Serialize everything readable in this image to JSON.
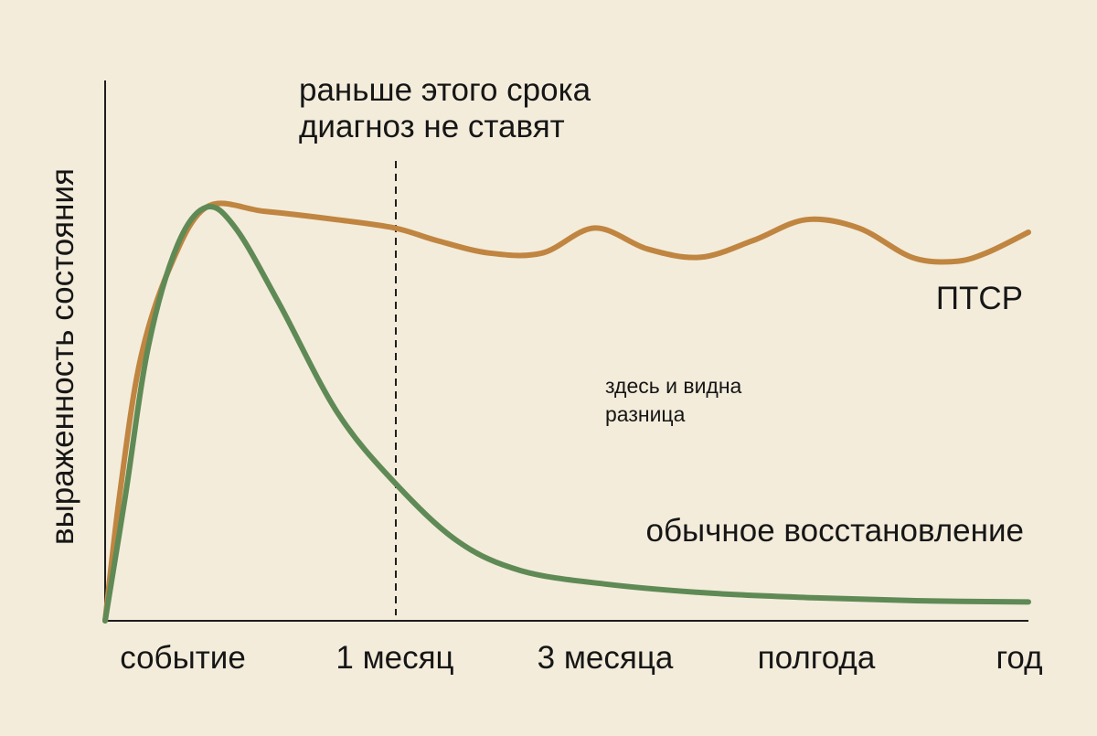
{
  "background_color": "#f3ecdb",
  "chart_data": {
    "type": "line",
    "title": "",
    "xlabel": "",
    "ylabel": "выраженность состояния",
    "grid": false,
    "x_ticks": [
      "событие",
      "1 месяц",
      "3 месяца",
      "полгода",
      "год"
    ],
    "x_range": [
      0,
      4
    ],
    "y_range": [
      0,
      1
    ],
    "annotations": {
      "cutoff_line_label": [
        "раньше этого срока",
        "диагноз не ставят"
      ],
      "cutoff_x": 1,
      "difference_note": [
        "здесь и видна",
        "разница"
      ]
    },
    "series": [
      {
        "name": "ПТСР",
        "color": "#c08540",
        "points": [
          [
            0,
            0
          ],
          [
            0.05,
            0.3
          ],
          [
            0.12,
            0.62
          ],
          [
            0.22,
            0.84
          ],
          [
            0.35,
            0.99
          ],
          [
            0.55,
            0.98
          ],
          [
            0.8,
            0.96
          ],
          [
            1.0,
            0.94
          ],
          [
            1.2,
            0.91
          ],
          [
            1.45,
            0.88
          ],
          [
            1.7,
            0.88
          ],
          [
            1.95,
            0.94
          ],
          [
            2.2,
            0.89
          ],
          [
            2.45,
            0.87
          ],
          [
            2.7,
            0.91
          ],
          [
            2.95,
            0.96
          ],
          [
            3.2,
            0.94
          ],
          [
            3.45,
            0.87
          ],
          [
            3.65,
            0.86
          ],
          [
            3.8,
            0.88
          ],
          [
            4.0,
            0.93
          ]
        ]
      },
      {
        "name": "обычное восстановление",
        "color": "#5f8a55",
        "points": [
          [
            0,
            0
          ],
          [
            0.07,
            0.3
          ],
          [
            0.15,
            0.66
          ],
          [
            0.25,
            0.9
          ],
          [
            0.35,
            0.99
          ],
          [
            0.45,
            0.94
          ],
          [
            0.6,
            0.76
          ],
          [
            0.8,
            0.5
          ],
          [
            1.0,
            0.33
          ],
          [
            1.3,
            0.19
          ],
          [
            1.6,
            0.12
          ],
          [
            2.0,
            0.088
          ],
          [
            2.5,
            0.066
          ],
          [
            3.0,
            0.055
          ],
          [
            3.5,
            0.048
          ],
          [
            4.0,
            0.045
          ]
        ]
      }
    ]
  },
  "axis_color": "#1e1e1e"
}
